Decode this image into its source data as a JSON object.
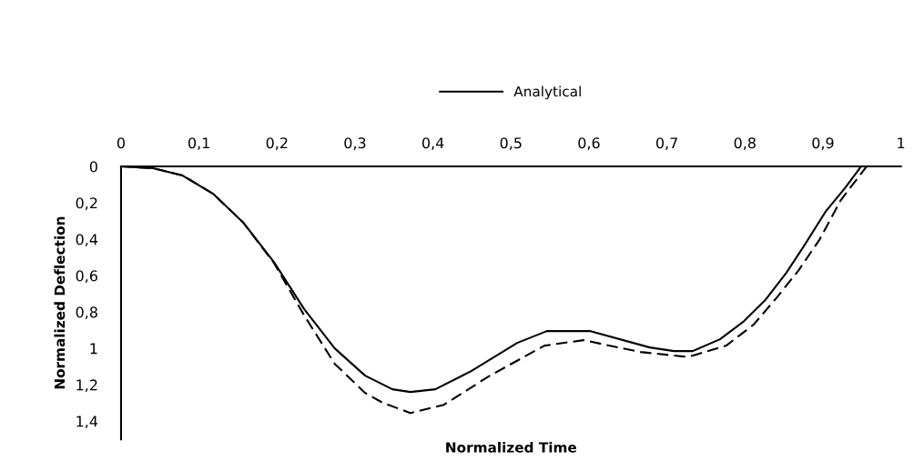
{
  "chart_data": {
    "type": "line",
    "xlabel": "Normalized Time",
    "ylabel": "Normalized Deflection",
    "xlim": [
      0,
      1
    ],
    "ylim": [
      1.5,
      0
    ],
    "xticks": [
      0,
      {
        "value": 0.1,
        "label": "0,1"
      },
      {
        "value": 0.2,
        "label": "0,2"
      },
      {
        "value": 0.3,
        "label": "0,3"
      },
      {
        "value": 0.4,
        "label": "0,4"
      },
      {
        "value": 0.5,
        "label": "0,5"
      },
      {
        "value": 0.6,
        "label": "0,6"
      },
      {
        "value": 0.7,
        "label": "0,7"
      },
      {
        "value": 0.8,
        "label": "0,8"
      },
      {
        "value": 0.9,
        "label": "0,9"
      },
      1
    ],
    "yticks": [
      0,
      {
        "value": 0.2,
        "label": "0,2"
      },
      {
        "value": 0.4,
        "label": "0,4"
      },
      {
        "value": 0.6,
        "label": "0,6"
      },
      {
        "value": 0.8,
        "label": "0,8"
      },
      1,
      {
        "value": 1.2,
        "label": "1,2"
      },
      {
        "value": 1.4,
        "label": "1,4"
      }
    ],
    "grid": false,
    "legend": "top",
    "marker": "none",
    "series": [
      {
        "name": "Analytical",
        "color": "#000000",
        "line_style": "solid",
        "x": [
          0,
          0.041,
          0.079,
          0.118,
          0.157,
          0.196,
          0.235,
          0.274,
          0.313,
          0.348,
          0.371,
          0.403,
          0.449,
          0.508,
          0.546,
          0.601,
          0.678,
          0.709,
          0.733,
          0.768,
          0.799,
          0.826,
          0.853,
          0.876,
          0.904,
          0.928,
          0.949
        ],
        "values": [
          0,
          0.01,
          0.05,
          0.15,
          0.31,
          0.525,
          0.785,
          1.0,
          1.15,
          1.225,
          1.24,
          1.225,
          1.125,
          0.97,
          0.905,
          0.905,
          0.995,
          1.015,
          1.015,
          0.95,
          0.85,
          0.735,
          0.585,
          0.435,
          0.245,
          0.12,
          0
        ]
      },
      {
        "color": "#000000",
        "line_style": "dashed",
        "x": [
          0,
          0.041,
          0.079,
          0.118,
          0.157,
          0.196,
          0.235,
          0.274,
          0.313,
          0.336,
          0.371,
          0.414,
          0.473,
          0.543,
          0.593,
          0.666,
          0.721,
          0.733,
          0.776,
          0.811,
          0.841,
          0.869,
          0.896,
          0.923,
          0.956
        ],
        "values": [
          0,
          0.01,
          0.05,
          0.15,
          0.31,
          0.53,
          0.82,
          1.085,
          1.245,
          1.3,
          1.355,
          1.31,
          1.15,
          0.985,
          0.955,
          1.02,
          1.045,
          1.04,
          0.985,
          0.87,
          0.72,
          0.57,
          0.4,
          0.185,
          0
        ]
      }
    ]
  }
}
